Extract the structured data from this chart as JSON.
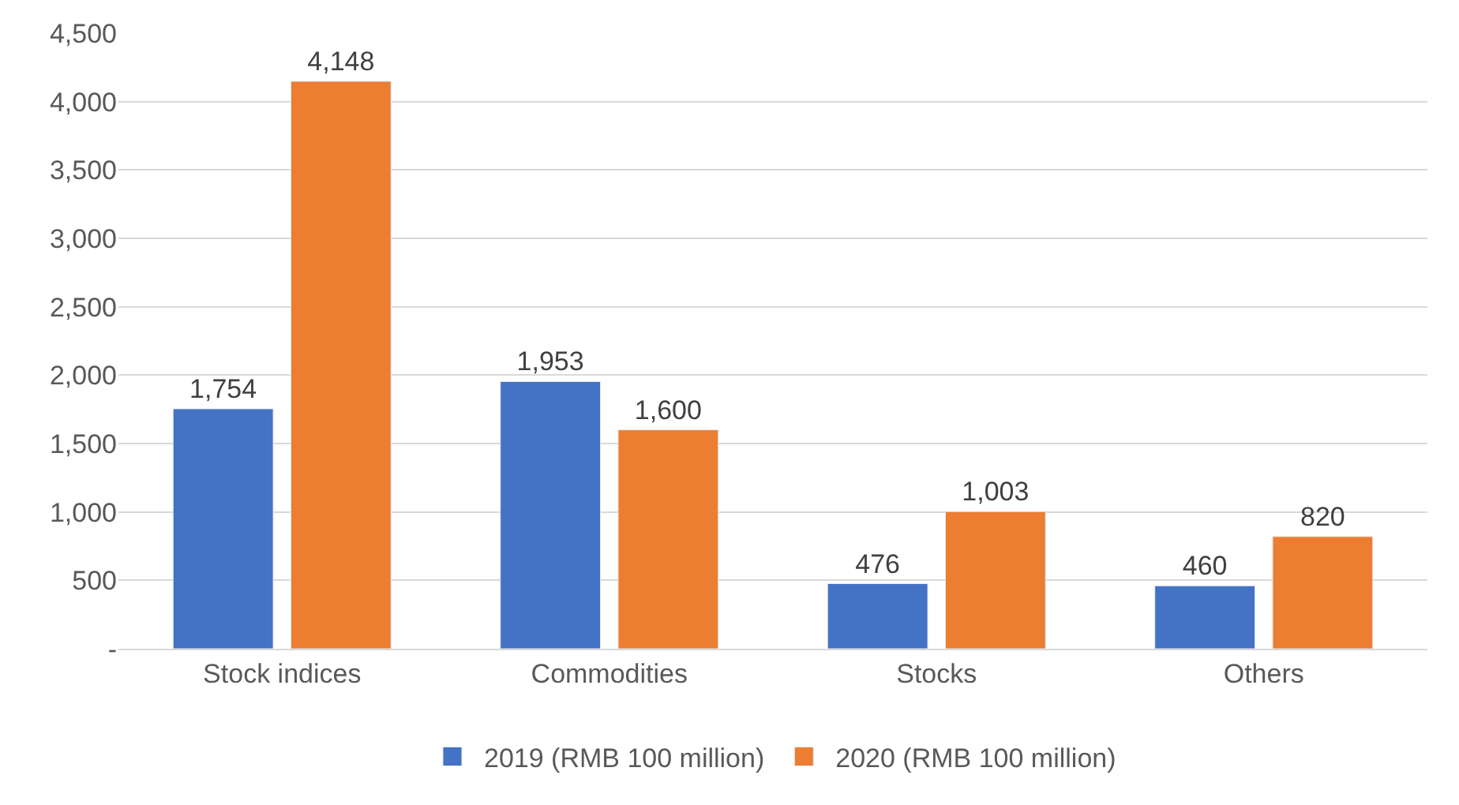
{
  "chart_data": {
    "type": "bar",
    "categories": [
      "Stock indices",
      "Commodities",
      "Stocks",
      "Others"
    ],
    "series": [
      {
        "name": "2019 (RMB 100 million)",
        "color": "#4472c4",
        "values": [
          1754,
          1953,
          476,
          460
        ],
        "value_labels": [
          "1,754",
          "1,953",
          "476",
          "460"
        ]
      },
      {
        "name": "2020 (RMB 100 million)",
        "color": "#ed7d31",
        "values": [
          4148,
          1600,
          1003,
          820
        ],
        "value_labels": [
          "4,148",
          "1,600",
          "1,003",
          "820"
        ]
      }
    ],
    "ylim": [
      0,
      4500
    ],
    "yticks": [
      {
        "value": 0,
        "label": "-"
      },
      {
        "value": 500,
        "label": "500"
      },
      {
        "value": 1000,
        "label": "1,000"
      },
      {
        "value": 1500,
        "label": "1,500"
      },
      {
        "value": 2000,
        "label": "2,000"
      },
      {
        "value": 2500,
        "label": "2,500"
      },
      {
        "value": 3000,
        "label": "3,000"
      },
      {
        "value": 3500,
        "label": "3,500"
      },
      {
        "value": 4000,
        "label": "4,000"
      },
      {
        "value": 4500,
        "label": "4,500"
      }
    ],
    "grid": "y",
    "legend": "bottom"
  }
}
